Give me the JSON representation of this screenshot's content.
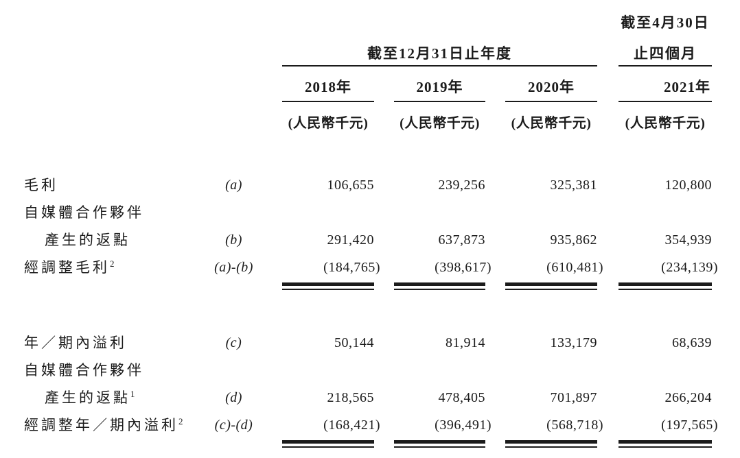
{
  "doc": {
    "header": {
      "annual_period": "截至12月31日止年度",
      "interim_period_line1": "截至4月30日",
      "interim_period_line2": "止四個月",
      "years": [
        "2018年",
        "2019年",
        "2020年",
        "2021年"
      ],
      "unit": "(人民幣千元)"
    },
    "rows": [
      {
        "label": "毛利",
        "sup": "",
        "ref": "(a)",
        "values": [
          "106,655",
          "239,256",
          "325,381",
          "120,800"
        ]
      },
      {
        "label": "自媒體合作夥伴",
        "sup": "",
        "ref": "",
        "values": [
          "",
          "",
          "",
          ""
        ]
      },
      {
        "label": "產生的返點",
        "sup": "",
        "ref": "(b)",
        "values": [
          "291,420",
          "637,873",
          "935,862",
          "354,939"
        ]
      },
      {
        "label": "經調整毛利",
        "sup": "2",
        "ref": "(a)-(b)",
        "values": [
          "(184,765)",
          "(398,617)",
          "(610,481)",
          "(234,139)"
        ]
      },
      {
        "label": "年／期內溢利",
        "sup": "",
        "ref": "(c)",
        "values": [
          "50,144",
          "81,914",
          "133,179",
          "68,639"
        ]
      },
      {
        "label": "自媒體合作夥伴",
        "sup": "",
        "ref": "",
        "values": [
          "",
          "",
          "",
          ""
        ]
      },
      {
        "label": "產生的返點",
        "sup": "1",
        "ref": "(d)",
        "values": [
          "218,565",
          "478,405",
          "701,897",
          "266,204"
        ]
      },
      {
        "label": "經調整年／期內溢利",
        "sup": "2",
        "ref": "(c)-(d)",
        "values": [
          "(168,421)",
          "(396,491)",
          "(568,718)",
          "(197,565)"
        ]
      }
    ]
  }
}
